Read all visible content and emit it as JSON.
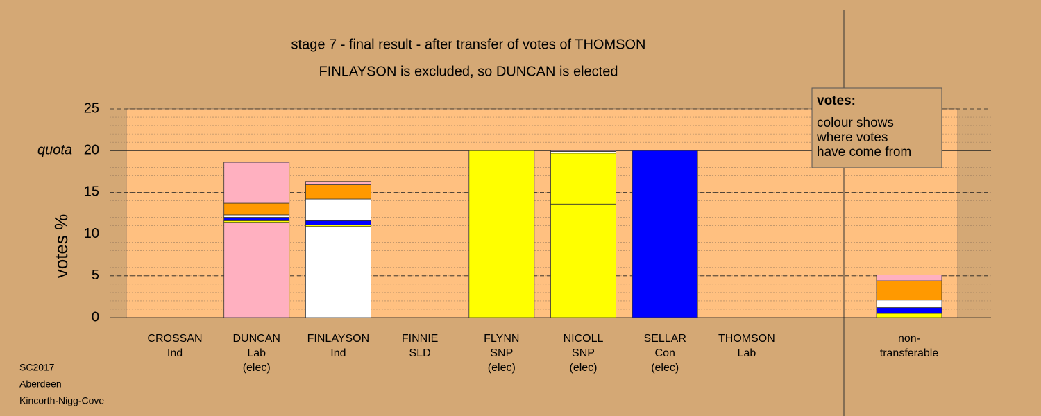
{
  "chart_data": {
    "type": "bar",
    "stacked": true,
    "title": "stage 7 - final result - after transfer of votes of THOMSON",
    "subtitle": "FINLAYSON is excluded, so DUNCAN is elected",
    "y_label": "votes %",
    "quota_label": "quota",
    "categories": [
      [
        "CROSSAN",
        "Ind"
      ],
      [
        "DUNCAN",
        "Lab",
        "(elec)"
      ],
      [
        "FINLAYSON",
        "Ind"
      ],
      [
        "FINNIE",
        "SLD"
      ],
      [
        "FLYNN",
        "SNP",
        "(elec)"
      ],
      [
        "NICOLL",
        "SNP",
        "(elec)"
      ],
      [
        "SELLAR",
        "Con",
        "(elec)"
      ],
      [
        "THOMSON",
        "Lab"
      ],
      [
        "non-",
        "transferable"
      ]
    ],
    "series": [
      {
        "colors": [
          "#ffffff",
          "#ffb0c0",
          "#ffffff",
          "#ff9900",
          "#ffff00",
          "#ffff00",
          "#0000ff",
          "#ffb0c0",
          "#ffffff"
        ],
        "values": [
          0,
          11.4,
          10.9,
          0,
          20,
          13.6,
          20,
          0,
          0
        ]
      },
      {
        "color": "#ffff00",
        "values": [
          0,
          0.2,
          0.2,
          0,
          0,
          6.1,
          0,
          0,
          0.5
        ]
      },
      {
        "color": "#0000ff",
        "values": [
          0,
          0.4,
          0.5,
          0,
          0,
          0,
          0,
          0,
          0.7
        ]
      },
      {
        "color": "#ffffff",
        "values": [
          0,
          0.3,
          2.6,
          0,
          0,
          0.2,
          0,
          0,
          0.9
        ]
      },
      {
        "color": "#ff9900",
        "values": [
          0,
          1.4,
          1.7,
          0,
          0,
          0,
          0,
          0,
          2.3
        ]
      },
      {
        "color": "#ffb0c0",
        "values": [
          0,
          4.9,
          0.4,
          0,
          0,
          0.1,
          0,
          0,
          0.7
        ]
      }
    ],
    "ylim": [
      0,
      25
    ],
    "yticks": [
      0,
      5,
      10,
      15,
      20,
      25
    ],
    "quota": 20,
    "minor_grid": 1,
    "legend": {
      "title": "votes:",
      "lines": [
        "colour shows",
        "where votes",
        "have come from"
      ]
    },
    "footer": [
      "SC2017",
      "Aberdeen",
      "Kincorth-Nigg-Cove"
    ]
  }
}
